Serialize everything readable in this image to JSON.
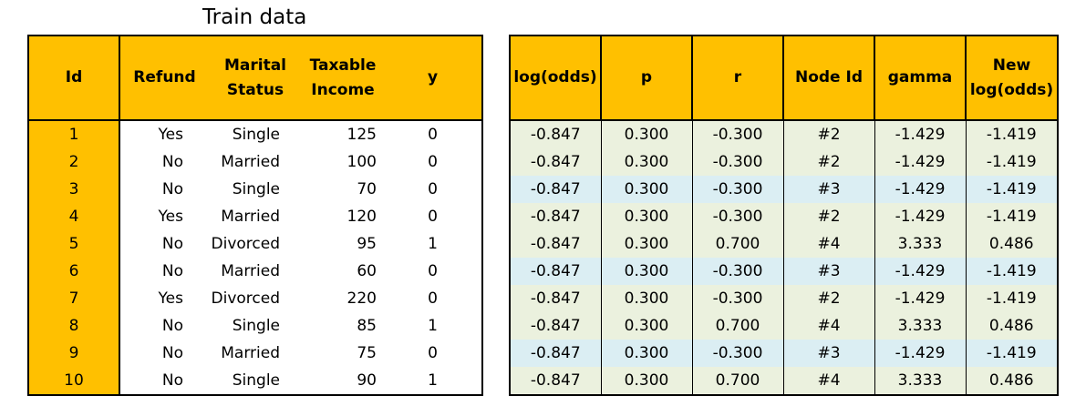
{
  "title": "Train data",
  "train": {
    "headers": {
      "id": "Id",
      "refund": "Refund",
      "marital_1": "Marital",
      "marital_2": "Status",
      "income_1": "Taxable",
      "income_2": "Income",
      "y": "y"
    },
    "rows": [
      {
        "id": "1",
        "refund": "Yes",
        "marital": "Single",
        "income": "125",
        "y": "0"
      },
      {
        "id": "2",
        "refund": "No",
        "marital": "Married",
        "income": "100",
        "y": "0"
      },
      {
        "id": "3",
        "refund": "No",
        "marital": "Single",
        "income": "70",
        "y": "0"
      },
      {
        "id": "4",
        "refund": "Yes",
        "marital": "Married",
        "income": "120",
        "y": "0"
      },
      {
        "id": "5",
        "refund": "No",
        "marital": "Divorced",
        "income": "95",
        "y": "1"
      },
      {
        "id": "6",
        "refund": "No",
        "marital": "Married",
        "income": "60",
        "y": "0"
      },
      {
        "id": "7",
        "refund": "Yes",
        "marital": "Divorced",
        "income": "220",
        "y": "0"
      },
      {
        "id": "8",
        "refund": "No",
        "marital": "Single",
        "income": "85",
        "y": "1"
      },
      {
        "id": "9",
        "refund": "No",
        "marital": "Married",
        "income": "75",
        "y": "0"
      },
      {
        "id": "10",
        "refund": "No",
        "marital": "Single",
        "income": "90",
        "y": "1"
      }
    ]
  },
  "calc": {
    "headers": {
      "logodds": "log(odds)",
      "p": "p",
      "r": "r",
      "node": "Node Id",
      "gamma": "gamma",
      "new_1": "New",
      "new_2": "log(odds)"
    },
    "rows": [
      {
        "logodds": "-0.847",
        "p": "0.300",
        "r": "-0.300",
        "node": "#2",
        "gamma": "-1.429",
        "new": "-1.419"
      },
      {
        "logodds": "-0.847",
        "p": "0.300",
        "r": "-0.300",
        "node": "#2",
        "gamma": "-1.429",
        "new": "-1.419"
      },
      {
        "logodds": "-0.847",
        "p": "0.300",
        "r": "-0.300",
        "node": "#3",
        "gamma": "-1.429",
        "new": "-1.419"
      },
      {
        "logodds": "-0.847",
        "p": "0.300",
        "r": "-0.300",
        "node": "#2",
        "gamma": "-1.429",
        "new": "-1.419"
      },
      {
        "logodds": "-0.847",
        "p": "0.300",
        "r": "0.700",
        "node": "#4",
        "gamma": "3.333",
        "new": "0.486"
      },
      {
        "logodds": "-0.847",
        "p": "0.300",
        "r": "-0.300",
        "node": "#3",
        "gamma": "-1.429",
        "new": "-1.419"
      },
      {
        "logodds": "-0.847",
        "p": "0.300",
        "r": "-0.300",
        "node": "#2",
        "gamma": "-1.429",
        "new": "-1.419"
      },
      {
        "logodds": "-0.847",
        "p": "0.300",
        "r": "0.700",
        "node": "#4",
        "gamma": "3.333",
        "new": "0.486"
      },
      {
        "logodds": "-0.847",
        "p": "0.300",
        "r": "-0.300",
        "node": "#3",
        "gamma": "-1.429",
        "new": "-1.419"
      },
      {
        "logodds": "-0.847",
        "p": "0.300",
        "r": "0.700",
        "node": "#4",
        "gamma": "3.333",
        "new": "0.486"
      }
    ]
  },
  "colors": {
    "header_fill": "#ffc000",
    "row_node_2_4": "#ebf1de",
    "row_node_3": "#dbeef3"
  }
}
